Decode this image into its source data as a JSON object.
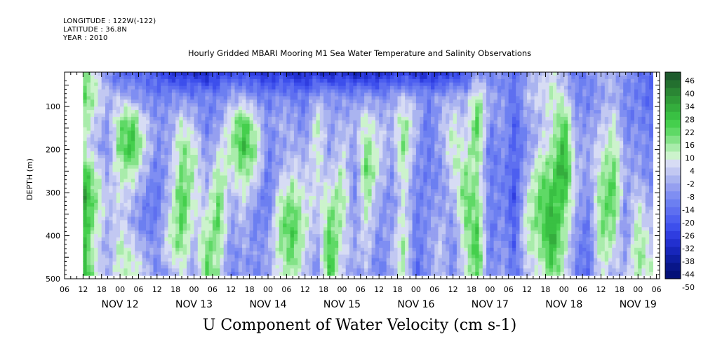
{
  "header": {
    "longitude": "LONGITUDE : 122W(-122)",
    "latitude": "LATITUDE : 36.8N",
    "year": "YEAR : 2010"
  },
  "chart_data": {
    "type": "heatmap",
    "title": "Hourly Gridded MBARI Mooring M1 Sea Water Temperature and Salinity Observations",
    "xlabel": "U Component of Water Velocity (cm s-1)",
    "ylabel": "DEPTH (m)",
    "y_ticks": [
      100,
      200,
      300,
      400,
      500
    ],
    "ylim": [
      20,
      500
    ],
    "y_inverted": true,
    "data_depth_range": [
      20,
      488
    ],
    "x_axis": {
      "start": "2010-11-11 06:00",
      "end": "2010-11-19 07:00",
      "hour_tick_labels": [
        "06",
        "12",
        "18",
        "00",
        "06",
        "12",
        "18",
        "00",
        "06",
        "12",
        "18",
        "00",
        "06",
        "12",
        "18",
        "00",
        "06",
        "12",
        "18",
        "00",
        "06",
        "12",
        "18",
        "00",
        "06",
        "12",
        "18",
        "00",
        "06",
        "12",
        "18",
        "00",
        "06"
      ],
      "day_labels": [
        "NOV 12",
        "NOV 13",
        "NOV 14",
        "NOV 15",
        "NOV 16",
        "NOV 17",
        "NOV 18",
        "NOV 19"
      ]
    },
    "data_time_range_hours": [
      6,
      190
    ],
    "colorbar": {
      "min": -50,
      "max": 46,
      "labels": [
        46,
        40,
        34,
        28,
        22,
        16,
        10,
        4,
        -2,
        -8,
        -14,
        -20,
        -26,
        -32,
        -38,
        -44,
        -50
      ],
      "colors": [
        "#1d5a2c",
        "#23702f",
        "#2a8634",
        "#2f9a38",
        "#34ad3d",
        "#39c043",
        "#45cf4d",
        "#5fd966",
        "#83e287",
        "#a9ecab",
        "#ccf3cc",
        "#d7dcf4",
        "#c2c8f2",
        "#aab4f0",
        "#959ff0",
        "#7f8ef2",
        "#6c7ff1",
        "#5e6ff0",
        "#4d5ff0",
        "#3d4fec",
        "#2f3de0",
        "#2230cf",
        "#1726ba",
        "#0e1ea1",
        "#081689",
        "#031078"
      ]
    },
    "columns": [
      {
        "t": 6,
        "v": [
          14,
          20,
          12,
          6,
          26,
          34,
          30,
          26,
          30
        ]
      },
      {
        "t": 10,
        "v": [
          4,
          8,
          2,
          -4,
          10,
          14,
          10,
          4,
          8
        ]
      },
      {
        "t": 14,
        "v": [
          -10,
          -4,
          -8,
          -12,
          -6,
          -2,
          -4,
          -8,
          -4
        ]
      },
      {
        "t": 18,
        "v": [
          -24,
          -2,
          14,
          18,
          8,
          4,
          2,
          10,
          6
        ]
      },
      {
        "t": 22,
        "v": [
          -20,
          -6,
          20,
          26,
          10,
          -2,
          -6,
          4,
          10
        ]
      },
      {
        "t": 26,
        "v": [
          -18,
          -12,
          2,
          4,
          -4,
          -12,
          -16,
          -6,
          0
        ]
      },
      {
        "t": 30,
        "v": [
          -26,
          -14,
          -10,
          -12,
          -16,
          -18,
          -14,
          -10,
          -14
        ]
      },
      {
        "t": 34,
        "v": [
          -30,
          -12,
          -8,
          -6,
          -4,
          -2,
          4,
          8,
          -6
        ]
      },
      {
        "t": 38,
        "v": [
          -34,
          -10,
          6,
          14,
          16,
          22,
          20,
          14,
          4
        ]
      },
      {
        "t": 42,
        "v": [
          -32,
          -14,
          -2,
          8,
          10,
          6,
          2,
          -4,
          -10
        ]
      },
      {
        "t": 46,
        "v": [
          -36,
          -12,
          -16,
          -10,
          -8,
          -2,
          6,
          16,
          20
        ]
      },
      {
        "t": 50,
        "v": [
          -30,
          -14,
          -8,
          0,
          12,
          18,
          20,
          12,
          8
        ]
      },
      {
        "t": 54,
        "v": [
          -24,
          -6,
          8,
          10,
          4,
          -6,
          -8,
          -12,
          -14
        ]
      },
      {
        "t": 58,
        "v": [
          -28,
          -4,
          22,
          26,
          12,
          4,
          -2,
          -6,
          -8
        ]
      },
      {
        "t": 62,
        "v": [
          -30,
          -10,
          6,
          12,
          6,
          -8,
          -14,
          -10,
          -12
        ]
      },
      {
        "t": 66,
        "v": [
          -32,
          -16,
          -12,
          -14,
          -16,
          -18,
          -12,
          -6,
          -8
        ]
      },
      {
        "t": 70,
        "v": [
          -30,
          -10,
          -4,
          -8,
          -4,
          8,
          14,
          10,
          6
        ]
      },
      {
        "t": 74,
        "v": [
          -34,
          -14,
          -6,
          -4,
          4,
          14,
          22,
          20,
          12
        ]
      },
      {
        "t": 78,
        "v": [
          -36,
          -16,
          -14,
          -6,
          -2,
          4,
          8,
          4,
          -2
        ]
      },
      {
        "t": 82,
        "v": [
          -32,
          -6,
          10,
          8,
          4,
          2,
          -4,
          -8,
          -12
        ]
      },
      {
        "t": 86,
        "v": [
          -36,
          -8,
          -8,
          -10,
          -2,
          8,
          18,
          24,
          26
        ]
      },
      {
        "t": 90,
        "v": [
          -32,
          -12,
          -4,
          2,
          10,
          14,
          8,
          4,
          -2
        ]
      },
      {
        "t": 94,
        "v": [
          -38,
          -10,
          -4,
          -8,
          -14,
          -12,
          -10,
          -6,
          -8
        ]
      },
      {
        "t": 98,
        "v": [
          -34,
          -8,
          8,
          14,
          20,
          12,
          6,
          2,
          -4
        ]
      },
      {
        "t": 102,
        "v": [
          -36,
          -12,
          -2,
          4,
          2,
          -6,
          -10,
          -14,
          -16
        ]
      },
      {
        "t": 106,
        "v": [
          -30,
          -8,
          -4,
          -8,
          -10,
          -12,
          -8,
          -4,
          -6
        ]
      },
      {
        "t": 110,
        "v": [
          -30,
          -2,
          14,
          16,
          10,
          4,
          8,
          14,
          8
        ]
      },
      {
        "t": 114,
        "v": [
          -34,
          -6,
          -2,
          -8,
          -12,
          -14,
          -16,
          -18,
          -20
        ]
      },
      {
        "t": 118,
        "v": [
          -32,
          -14,
          -18,
          -16,
          -14,
          -12,
          -10,
          -8,
          -10
        ]
      },
      {
        "t": 122,
        "v": [
          -34,
          -8,
          -4,
          -6,
          -12,
          -8,
          -4,
          2,
          -2
        ]
      },
      {
        "t": 126,
        "v": [
          -28,
          -4,
          6,
          10,
          4,
          -4,
          -10,
          -14,
          -12
        ]
      },
      {
        "t": 130,
        "v": [
          -26,
          -6,
          -2,
          4,
          12,
          18,
          14,
          8,
          4
        ]
      },
      {
        "t": 134,
        "v": [
          -10,
          12,
          22,
          16,
          10,
          14,
          18,
          24,
          20
        ]
      },
      {
        "t": 138,
        "v": [
          -14,
          -6,
          -12,
          -18,
          -16,
          -14,
          -18,
          -16,
          -14
        ]
      },
      {
        "t": 142,
        "v": [
          -12,
          -10,
          -6,
          -10,
          -14,
          -12,
          -10,
          -8,
          -6
        ]
      },
      {
        "t": 146,
        "v": [
          -18,
          -18,
          -22,
          -20,
          -22,
          -26,
          -22,
          -20,
          -18
        ]
      },
      {
        "t": 150,
        "v": [
          -8,
          -2,
          -8,
          -12,
          -4,
          4,
          10,
          6,
          -2
        ]
      },
      {
        "t": 154,
        "v": [
          -4,
          2,
          -4,
          2,
          14,
          18,
          16,
          10,
          4
        ]
      },
      {
        "t": 158,
        "v": [
          6,
          8,
          4,
          10,
          16,
          24,
          30,
          28,
          18
        ]
      },
      {
        "t": 162,
        "v": [
          -8,
          6,
          20,
          28,
          32,
          22,
          14,
          10,
          6
        ]
      },
      {
        "t": 166,
        "v": [
          -16,
          -12,
          -8,
          -6,
          -2,
          -4,
          -8,
          -12,
          -14
        ]
      },
      {
        "t": 170,
        "v": [
          -12,
          -14,
          -10,
          -6,
          -8,
          -12,
          -16,
          -18,
          -20
        ]
      },
      {
        "t": 174,
        "v": [
          -6,
          -8,
          -2,
          4,
          10,
          14,
          16,
          12,
          6
        ]
      },
      {
        "t": 178,
        "v": [
          -2,
          -4,
          6,
          12,
          18,
          22,
          14,
          6,
          -4
        ]
      },
      {
        "t": 182,
        "v": [
          -10,
          -12,
          -14,
          -8,
          -6,
          -10,
          -14,
          -8,
          -4
        ]
      },
      {
        "t": 186,
        "v": [
          -16,
          -14,
          -12,
          -10,
          -6,
          4,
          10,
          14,
          12
        ]
      },
      {
        "t": 190,
        "v": [
          -18,
          -20,
          -16,
          -12,
          -14,
          -8,
          -2,
          4,
          6
        ]
      }
    ]
  }
}
